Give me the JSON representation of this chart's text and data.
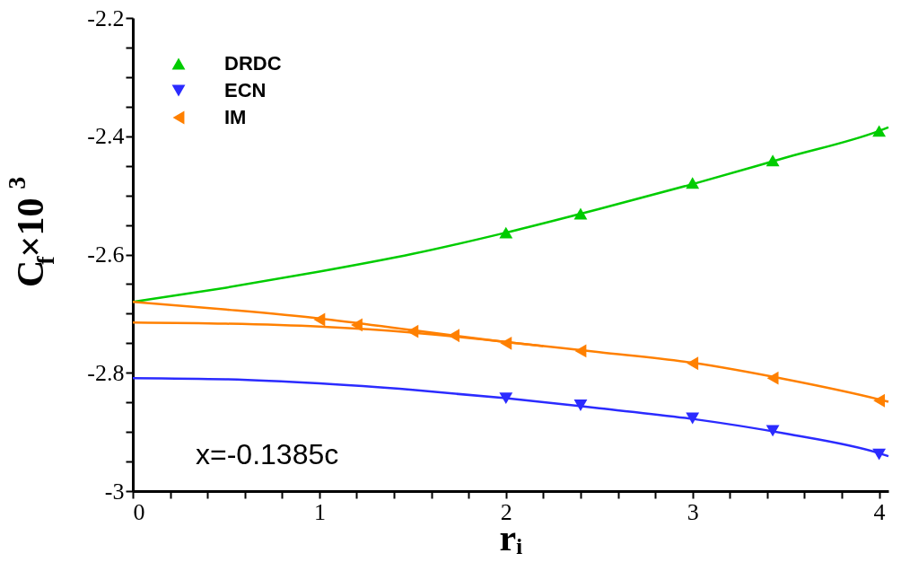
{
  "chart_data": {
    "type": "scatter",
    "xlabel": "rᵢ",
    "ylabel": "C$_{f}$×10$^{3}$",
    "xlim": [
      0,
      4.05
    ],
    "ylim": [
      -3,
      -2.2
    ],
    "xticks": [
      0,
      {
        "value": 0.2,
        "label": null
      },
      {
        "value": 0.4,
        "label": null
      },
      {
        "value": 0.6,
        "label": null
      },
      {
        "value": 0.8,
        "label": null
      },
      1,
      {
        "value": 1.2,
        "label": null
      },
      {
        "value": 1.4,
        "label": null
      },
      {
        "value": 1.6,
        "label": null
      },
      {
        "value": 1.8,
        "label": null
      },
      2,
      {
        "value": 2.2,
        "label": null
      },
      {
        "value": 2.4,
        "label": null
      },
      {
        "value": 2.6,
        "label": null
      },
      {
        "value": 2.8,
        "label": null
      },
      3,
      {
        "value": 3.2,
        "label": null
      },
      {
        "value": 3.4,
        "label": null
      },
      {
        "value": 3.6,
        "label": null
      },
      {
        "value": 3.8,
        "label": null
      },
      4
    ],
    "yticks": [
      -3,
      {
        "value": -2.95,
        "label": null
      },
      {
        "value": -2.9,
        "label": null
      },
      {
        "value": -2.85,
        "label": null
      },
      -2.8,
      {
        "value": -2.75,
        "label": null
      },
      {
        "value": -2.7,
        "label": null
      },
      {
        "value": -2.65,
        "label": null
      },
      -2.6,
      {
        "value": -2.55,
        "label": null
      },
      {
        "value": -2.5,
        "label": null
      },
      {
        "value": -2.45,
        "label": null
      },
      -2.4,
      {
        "value": -2.35,
        "label": null
      },
      {
        "value": -2.3,
        "label": null
      },
      {
        "value": -2.25,
        "label": null
      },
      -2.2
    ],
    "grid": false,
    "legend": "top left",
    "annotations": [
      "x=-0.1385c"
    ],
    "series": [
      {
        "type": "line",
        "color": "#00cc00",
        "x": [
          0,
          0.5,
          1,
          1.5,
          2,
          2.5,
          3,
          3.5,
          4,
          4.05
        ],
        "values": [
          -2.68,
          -2.656,
          -2.629,
          -2.599,
          -2.563,
          -2.523,
          -2.481,
          -2.436,
          -2.391,
          -2.385
        ]
      },
      {
        "type": "line",
        "color": "#2b2bff",
        "x": [
          0,
          0.5,
          1,
          1.5,
          2,
          2.5,
          3,
          3.5,
          4,
          4.05
        ],
        "values": [
          -2.809,
          -2.811,
          -2.818,
          -2.829,
          -2.843,
          -2.86,
          -2.878,
          -2.903,
          -2.936,
          -2.941
        ]
      },
      {
        "type": "line",
        "color": "#ff8000",
        "x": [
          0,
          0.5,
          1,
          1.5,
          2,
          2.5,
          3,
          3.5,
          4,
          4.05
        ],
        "values": [
          -2.68,
          -2.693,
          -2.708,
          -2.728,
          -2.748,
          -2.765,
          -2.783,
          -2.811,
          -2.845,
          -2.849
        ]
      },
      {
        "type": "line",
        "color": "#ff8000",
        "x": [
          0,
          0.5,
          1,
          1.5,
          2,
          2.2
        ],
        "values": [
          -2.715,
          -2.717,
          -2.722,
          -2.732,
          -2.748,
          -2.755
        ]
      },
      {
        "name": "DRDC",
        "color": "#00cc00",
        "marker": "triangle-up",
        "x": [
          2,
          2.4,
          3,
          3.43,
          4
        ],
        "values": [
          -2.563,
          -2.531,
          -2.479,
          -2.441,
          -2.391
        ]
      },
      {
        "name": "ECN",
        "color": "#2b2bff",
        "marker": "triangle-down",
        "x": [
          2,
          2.4,
          3,
          3.43,
          4
        ],
        "values": [
          -2.843,
          -2.855,
          -2.877,
          -2.898,
          -2.938
        ]
      },
      {
        "name": "IM",
        "color": "#ff8000",
        "marker": "triangle-left",
        "x": [
          1,
          1.2,
          1.5,
          1.72,
          2,
          2.4,
          3,
          3.43,
          4
        ],
        "values": [
          -2.71,
          -2.719,
          -2.73,
          -2.737,
          -2.75,
          -2.763,
          -2.784,
          -2.809,
          -2.847
        ]
      }
    ]
  }
}
